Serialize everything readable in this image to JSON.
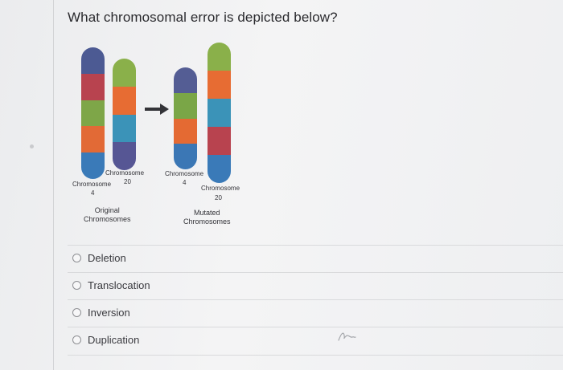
{
  "question": {
    "text": "What chromosomal error is depicted below?"
  },
  "figure": {
    "original": {
      "chromosome_4_label": "Chromosome",
      "chromosome_4_number": "4",
      "chromosome_20_label": "Chromosome",
      "chromosome_20_number": "20",
      "caption_line1": "Original",
      "caption_line2": "Chromosomes",
      "chromosome_4_bands": [
        "#4c5a93",
        "#b8434f",
        "#7ea648",
        "#e26a36",
        "#3a7ab8"
      ],
      "chromosome_20_bands": [
        "#8ab04a",
        "#e76c33",
        "#3b93b8",
        "#565694"
      ]
    },
    "mutated": {
      "chromosome_4_label": "Chromosome",
      "chromosome_4_number": "4",
      "chromosome_20_label": "Chromosome",
      "chromosome_20_number": "20",
      "caption_line1": "Mutated",
      "caption_line2": "Chromosomes",
      "chromosome_4_bands": [
        "#545d94",
        "#7aa647",
        "#e46a33",
        "#3b77b5"
      ],
      "chromosome_20_bands": [
        "#8ab04a",
        "#e76c33",
        "#3b93b8",
        "#b8434f",
        "#3a7ab8"
      ]
    }
  },
  "options": [
    {
      "label": "Deletion"
    },
    {
      "label": "Translocation"
    },
    {
      "label": "Inversion"
    },
    {
      "label": "Duplication"
    }
  ],
  "colors": {
    "background": "#f1f1f3",
    "text": "#2a2a2e",
    "radio_border": "#8e8f93",
    "arrow": "#333338"
  },
  "icons": {
    "arrow": "right-arrow-icon",
    "scribble": "pen-scribble-icon"
  }
}
